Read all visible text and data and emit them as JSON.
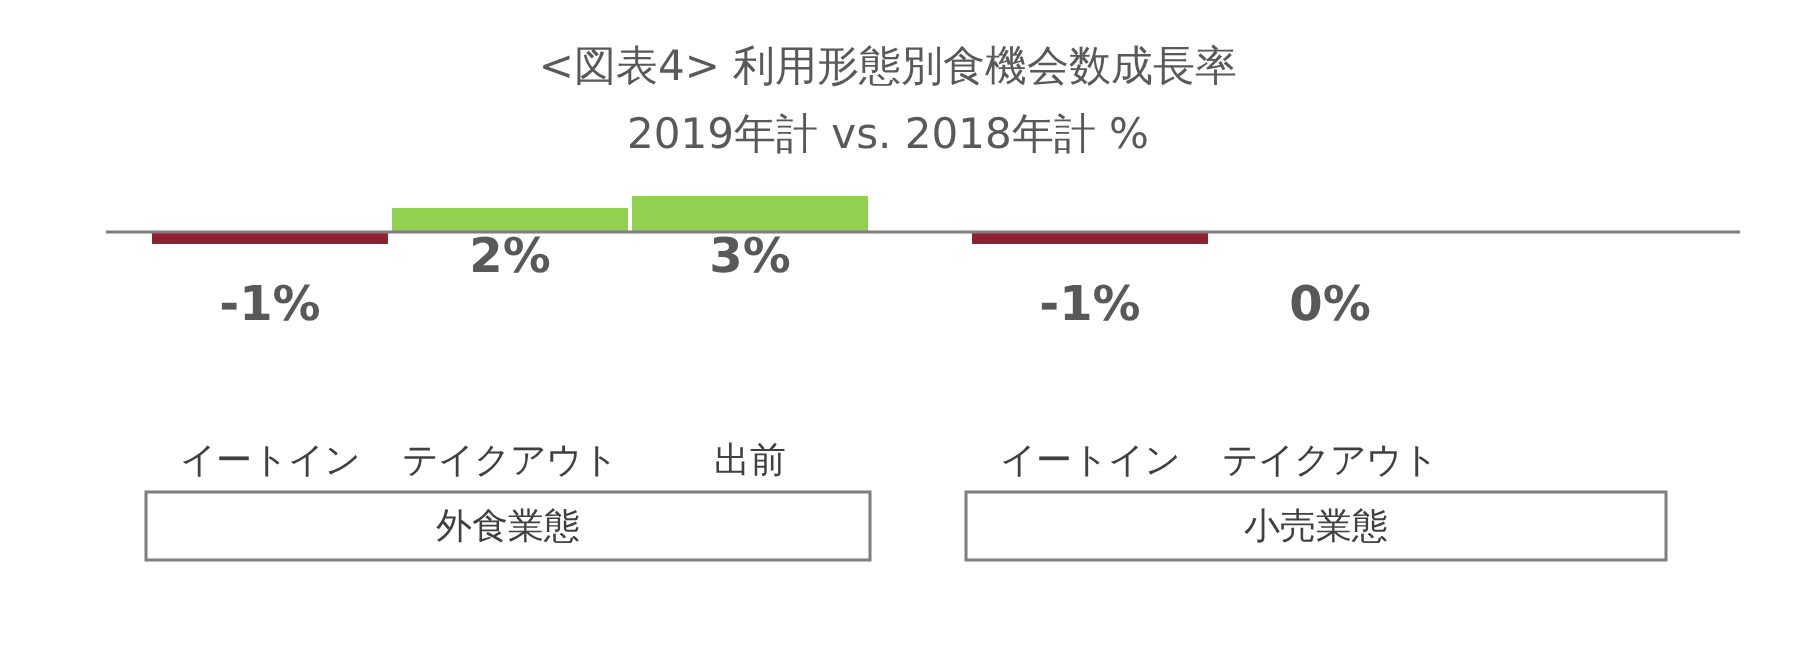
{
  "chart_data": {
    "type": "bar",
    "title": "<図表4> 利用形態別食機会数成長率",
    "subtitle": "2019年計 vs. 2018年計 %",
    "categories": [
      "イートイン",
      "テイクアウト",
      "出前",
      null,
      "イートイン",
      "テイクアウト"
    ],
    "values": [
      -1,
      2,
      3,
      null,
      -1,
      0
    ],
    "colors": [
      "#8b2332",
      "#92d050",
      "#92d050",
      null,
      "#8b2332",
      "#92d050"
    ],
    "value_labels": [
      "-1%",
      "2%",
      "3%",
      null,
      "-1%",
      "0%"
    ],
    "annotations": [
      "外食業態",
      "小売業態"
    ]
  }
}
